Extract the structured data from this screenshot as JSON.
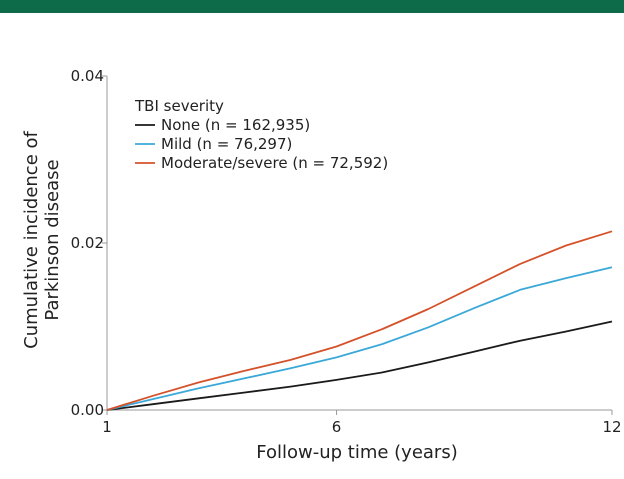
{
  "colors": {
    "top_bar": "#0e6b4a",
    "axis": "#999999"
  },
  "chart_data": {
    "type": "line",
    "title": "",
    "xlabel": "Follow-up time (years)",
    "ylabel_lines": [
      "Cumulative incidence of",
      "Parkinson disease"
    ],
    "xlim": [
      1,
      12
    ],
    "ylim": [
      0,
      0.04
    ],
    "xticks": [
      {
        "value": 1,
        "label": "1"
      },
      {
        "value": 6,
        "label": "6"
      },
      {
        "value": 12,
        "label": "12"
      }
    ],
    "yticks": [
      {
        "value": 0,
        "label": "0.00"
      },
      {
        "value": 0.02,
        "label": "0.02"
      },
      {
        "value": 0.04,
        "label": "0.04"
      }
    ],
    "legend": {
      "title": "TBI severity",
      "position": "top-left"
    },
    "series": [
      {
        "name": "None (n = 162,935)",
        "color": "#1a1a1a",
        "x": [
          1,
          2,
          3,
          4,
          5,
          6,
          7,
          8,
          9,
          10,
          11,
          12
        ],
        "y": [
          0,
          0.0007,
          0.0014,
          0.0021,
          0.0028,
          0.0036,
          0.0045,
          0.0057,
          0.007,
          0.0083,
          0.0094,
          0.0106
        ]
      },
      {
        "name": "Mild (n = 76,297)",
        "color": "#3aa8d8",
        "x": [
          1,
          2,
          3,
          4,
          5,
          6,
          7,
          8,
          9,
          10,
          11,
          12
        ],
        "y": [
          0,
          0.0013,
          0.0026,
          0.0038,
          0.005,
          0.0063,
          0.0079,
          0.0099,
          0.0122,
          0.0144,
          0.0158,
          0.0171
        ]
      },
      {
        "name": "Moderate/severe (n = 72,592)",
        "color": "#d4522a",
        "x": [
          1,
          2,
          3,
          4,
          5,
          6,
          7,
          8,
          9,
          10,
          11,
          12
        ],
        "y": [
          0,
          0.0017,
          0.0033,
          0.0047,
          0.006,
          0.0076,
          0.0097,
          0.0121,
          0.0148,
          0.0175,
          0.0197,
          0.0214
        ]
      }
    ]
  }
}
